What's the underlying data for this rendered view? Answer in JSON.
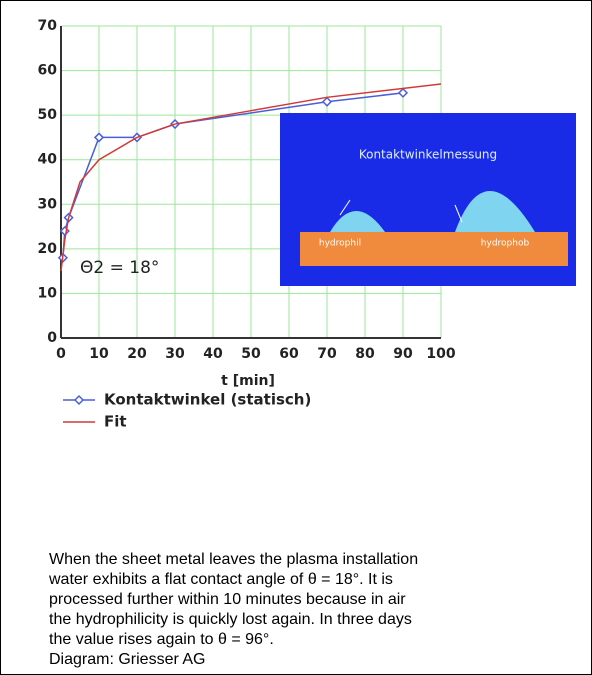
{
  "chart_data": {
    "type": "line",
    "xlabel": "t [min]",
    "annotation": "Θ2 = 18°",
    "inset": {
      "title": "Kontaktwinkelmessung",
      "left_label": "hydrophil",
      "right_label": "hydrophob"
    },
    "series": [
      {
        "name": "Kontaktwinkel (statisch)",
        "color": "#4a5ed8",
        "marker": "diamond",
        "x": [
          0.5,
          1,
          2,
          10,
          20,
          30,
          70,
          90
        ],
        "values": [
          18,
          24,
          27,
          45,
          45,
          48,
          53,
          55
        ]
      },
      {
        "name": "Fit",
        "color": "#d23a3a",
        "marker": "none",
        "x": [
          0,
          1,
          2,
          5,
          10,
          20,
          30,
          50,
          70,
          100
        ],
        "values": [
          15,
          22,
          27,
          35,
          40,
          45,
          48,
          51,
          54,
          57
        ]
      }
    ],
    "xlim": [
      0,
      100
    ],
    "xticks": [
      0,
      10,
      20,
      30,
      40,
      50,
      60,
      70,
      80,
      90,
      100
    ],
    "ylim": [
      0,
      70
    ],
    "yticks": [
      0,
      10,
      20,
      30,
      40,
      50,
      60,
      70
    ],
    "grid": true,
    "grid_color": "#9be59b"
  },
  "caption": [
    "When the sheet metal leaves the plasma installation",
    "water exhibits a flat contact angle of θ = 18°. It is",
    "processed further within 10 minutes because in air",
    "the hydrophilicity is quickly lost again. In three days",
    "the value rises again to θ = 96°.",
    "Diagram: Griesser AG"
  ]
}
